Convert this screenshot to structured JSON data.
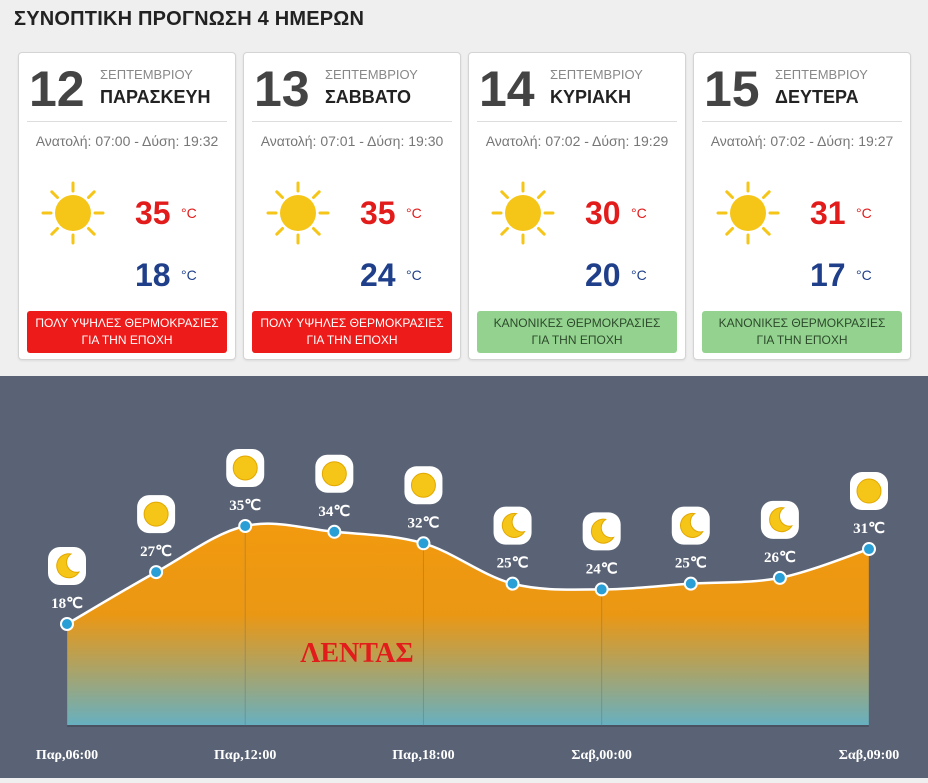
{
  "page_title": "ΣΥΝΟΠΤΙΚΗ ΠΡΟΓΝΩΣΗ 4 ΗΜΕΡΩΝ",
  "days": [
    {
      "day": "12",
      "month": "ΣΕΠΤΕΜΒΡΙΟΥ",
      "weekday": "ΠΑΡΑΣΚΕΥΗ",
      "suntimes": "Ανατολή: 07:00 - Δύση: 19:32",
      "tmax": "35",
      "tmin": "18",
      "unit": "°C",
      "icon": "sun-icon",
      "badge_line1": "ΠΟΛΥ ΥΨΗΛΕΣ ΘΕΡΜΟΚΡΑΣΙΕΣ",
      "badge_line2": "ΓΙΑ ΤΗΝ ΕΠΟΧΗ",
      "badge_type": "hot"
    },
    {
      "day": "13",
      "month": "ΣΕΠΤΕΜΒΡΙΟΥ",
      "weekday": "ΣΑΒΒΑΤΟ",
      "suntimes": "Ανατολή: 07:01 - Δύση: 19:30",
      "tmax": "35",
      "tmin": "24",
      "unit": "°C",
      "icon": "sun-icon",
      "badge_line1": "ΠΟΛΥ ΥΨΗΛΕΣ ΘΕΡΜΟΚΡΑΣΙΕΣ",
      "badge_line2": "ΓΙΑ ΤΗΝ ΕΠΟΧΗ",
      "badge_type": "hot"
    },
    {
      "day": "14",
      "month": "ΣΕΠΤΕΜΒΡΙΟΥ",
      "weekday": "ΚΥΡΙΑΚΗ",
      "suntimes": "Ανατολή: 07:02 - Δύση: 19:29",
      "tmax": "30",
      "tmin": "20",
      "unit": "°C",
      "icon": "sun-icon",
      "badge_line1": "ΚΑΝΟΝΙΚΕΣ ΘΕΡΜΟΚΡΑΣΙΕΣ",
      "badge_line2": "ΓΙΑ ΤΗΝ ΕΠΟΧΗ",
      "badge_type": "normal"
    },
    {
      "day": "15",
      "month": "ΣΕΠΤΕΜΒΡΙΟΥ",
      "weekday": "ΔΕΥΤΕΡΑ",
      "suntimes": "Ανατολή: 07:02 - Δύση: 19:27",
      "tmax": "31",
      "tmin": "17",
      "unit": "°C",
      "icon": "sun-icon",
      "badge_line1": "ΚΑΝΟΝΙΚΕΣ ΘΕΡΜΟΚΡΑΣΙΕΣ",
      "badge_line2": "ΓΙΑ ΤΗΝ ΕΠΟΧΗ",
      "badge_type": "normal"
    }
  ],
  "colors": {
    "hot": "#ee1b1b",
    "normal": "#93d38f",
    "tmax": "#e21b1b",
    "tmin": "#1f3f8a",
    "panel": "#5a6375",
    "sun": "#f5c518"
  },
  "chart_data": {
    "type": "area",
    "location_label": "ΛΕΝΤΑΣ",
    "x_ticks": [
      "Παρ,06:00",
      "Παρ,12:00",
      "Παρ,18:00",
      "Σαβ,00:00",
      "Σαβ,09:00"
    ],
    "x_tick_hours": [
      0,
      6,
      12,
      18,
      27
    ],
    "points": [
      {
        "hour": 0,
        "value": 18,
        "label": "18℃",
        "icon": "moon-icon"
      },
      {
        "hour": 3,
        "value": 27,
        "label": "27℃",
        "icon": "sun-icon"
      },
      {
        "hour": 6,
        "value": 35,
        "label": "35℃",
        "icon": "sun-icon"
      },
      {
        "hour": 9,
        "value": 34,
        "label": "34℃",
        "icon": "sun-icon"
      },
      {
        "hour": 12,
        "value": 32,
        "label": "32℃",
        "icon": "sun-icon"
      },
      {
        "hour": 15,
        "value": 25,
        "label": "25℃",
        "icon": "moon-icon"
      },
      {
        "hour": 18,
        "value": 24,
        "label": "24℃",
        "icon": "moon-icon"
      },
      {
        "hour": 21,
        "value": 25,
        "label": "25℃",
        "icon": "moon-icon"
      },
      {
        "hour": 24,
        "value": 26,
        "label": "26℃",
        "icon": "moon-icon"
      },
      {
        "hour": 27,
        "value": 31,
        "label": "31℃",
        "icon": "sun-icon"
      }
    ],
    "gradient": {
      "top": "#f29a0f",
      "bottom": "#66b0c2"
    }
  }
}
